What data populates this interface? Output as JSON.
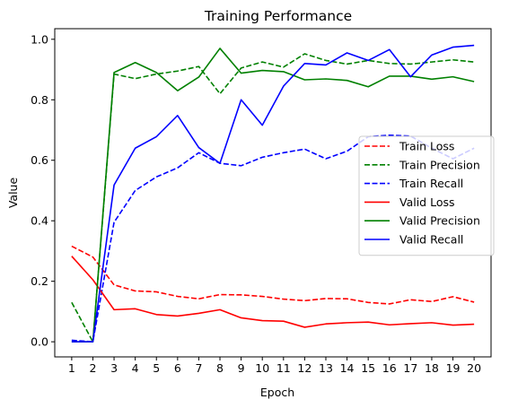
{
  "chart_data": {
    "type": "line",
    "title": "Training Performance",
    "xlabel": "Epoch",
    "ylabel": "Value",
    "x": [
      1,
      2,
      3,
      4,
      5,
      6,
      7,
      8,
      9,
      10,
      11,
      12,
      13,
      14,
      15,
      16,
      17,
      18,
      19,
      20
    ],
    "xticks": [
      1,
      2,
      3,
      4,
      5,
      6,
      7,
      8,
      9,
      10,
      11,
      12,
      13,
      14,
      15,
      16,
      17,
      18,
      19,
      20
    ],
    "yticks": [
      0.0,
      0.2,
      0.4,
      0.6,
      0.8,
      1.0
    ],
    "ytick_labels": [
      "0.0",
      "0.2",
      "0.4",
      "0.6",
      "0.8",
      "1.0"
    ],
    "xlim": [
      0.2,
      20.8
    ],
    "ylim": [
      -0.05,
      1.035
    ],
    "grid": false,
    "legend_position": "center-right",
    "series": [
      {
        "name": "Train Loss",
        "color": "#ff0000",
        "dash": true,
        "values": [
          0.316,
          0.28,
          0.188,
          0.168,
          0.165,
          0.15,
          0.142,
          0.156,
          0.155,
          0.15,
          0.141,
          0.136,
          0.143,
          0.142,
          0.13,
          0.125,
          0.139,
          0.133,
          0.149,
          0.131
        ]
      },
      {
        "name": "Train Precision",
        "color": "#008000",
        "dash": true,
        "values": [
          0.13,
          0.0,
          0.885,
          0.87,
          0.885,
          0.895,
          0.91,
          0.82,
          0.905,
          0.925,
          0.908,
          0.952,
          0.93,
          0.918,
          0.93,
          0.92,
          0.918,
          0.925,
          0.932,
          0.925
        ]
      },
      {
        "name": "Train Recall",
        "color": "#0000ff",
        "dash": true,
        "values": [
          0.005,
          0.0,
          0.395,
          0.5,
          0.545,
          0.575,
          0.625,
          0.59,
          0.582,
          0.61,
          0.625,
          0.637,
          0.605,
          0.63,
          0.678,
          0.683,
          0.68,
          0.64,
          0.605,
          0.64
        ]
      },
      {
        "name": "Valid Loss",
        "color": "#ff0000",
        "dash": false,
        "values": [
          0.283,
          0.205,
          0.106,
          0.109,
          0.09,
          0.085,
          0.094,
          0.106,
          0.079,
          0.07,
          0.068,
          0.048,
          0.059,
          0.063,
          0.065,
          0.056,
          0.06,
          0.063,
          0.055,
          0.058
        ]
      },
      {
        "name": "Valid Precision",
        "color": "#008000",
        "dash": false,
        "values": [
          0.0,
          0.0,
          0.89,
          0.923,
          0.89,
          0.83,
          0.875,
          0.97,
          0.888,
          0.897,
          0.893,
          0.866,
          0.869,
          0.864,
          0.843,
          0.878,
          0.878,
          0.868,
          0.876,
          0.86
        ]
      },
      {
        "name": "Valid Recall",
        "color": "#0000ff",
        "dash": false,
        "values": [
          0.0,
          0.0,
          0.518,
          0.64,
          0.678,
          0.748,
          0.642,
          0.59,
          0.8,
          0.716,
          0.845,
          0.92,
          0.915,
          0.955,
          0.93,
          0.966,
          0.876,
          0.948,
          0.974,
          0.98
        ]
      }
    ]
  }
}
